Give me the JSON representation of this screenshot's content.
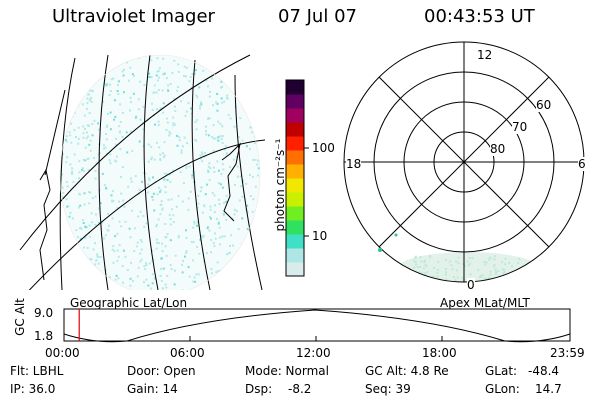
{
  "header": {
    "title": "Ultraviolet Imager",
    "date": "07 Jul 07",
    "time": "00:43:53 UT"
  },
  "colorbar": {
    "label": "photon cm⁻²s⁻¹",
    "tick_100": "100",
    "tick_10": "10",
    "colors": [
      "#d9ecec",
      "#aee6e6",
      "#40e0c8",
      "#30e060",
      "#70ee20",
      "#c8f000",
      "#f0e800",
      "#ffb000",
      "#ff7000",
      "#ff2000",
      "#c00000",
      "#a00060",
      "#600060",
      "#200030"
    ]
  },
  "left_panel": {
    "label": "Geographic Lat/Lon"
  },
  "polar_panel": {
    "label": "Apex MLat/MLT",
    "mlt_12": "12",
    "mlt_18": "18",
    "mlt_6": "6",
    "mlt_0": "0",
    "lat_60": "60",
    "lat_70": "70",
    "lat_80": "80"
  },
  "altitude_plot": {
    "ylabel": "GC Alt",
    "ytick_top": "9.0",
    "ytick_bottom": "1.8",
    "xticks": [
      "00:00",
      "06:00",
      "12:00",
      "18:00",
      "23:59"
    ],
    "current_time_fraction": 0.03
  },
  "info": {
    "flt": "Flt: LBHL",
    "door": "Door: Open",
    "mode": "Mode: Normal",
    "gc_alt": "GC Alt: 4.8 Re",
    "glat_label": "GLat:",
    "glat_value": "-48.4",
    "ip": "IP: 36.0",
    "gain": "Gain: 14",
    "dsp_label": "Dsp:",
    "dsp_value": "-8.2",
    "seq": "Seq: 39",
    "glon_label": "GLon:",
    "glon_value": "14.7"
  }
}
